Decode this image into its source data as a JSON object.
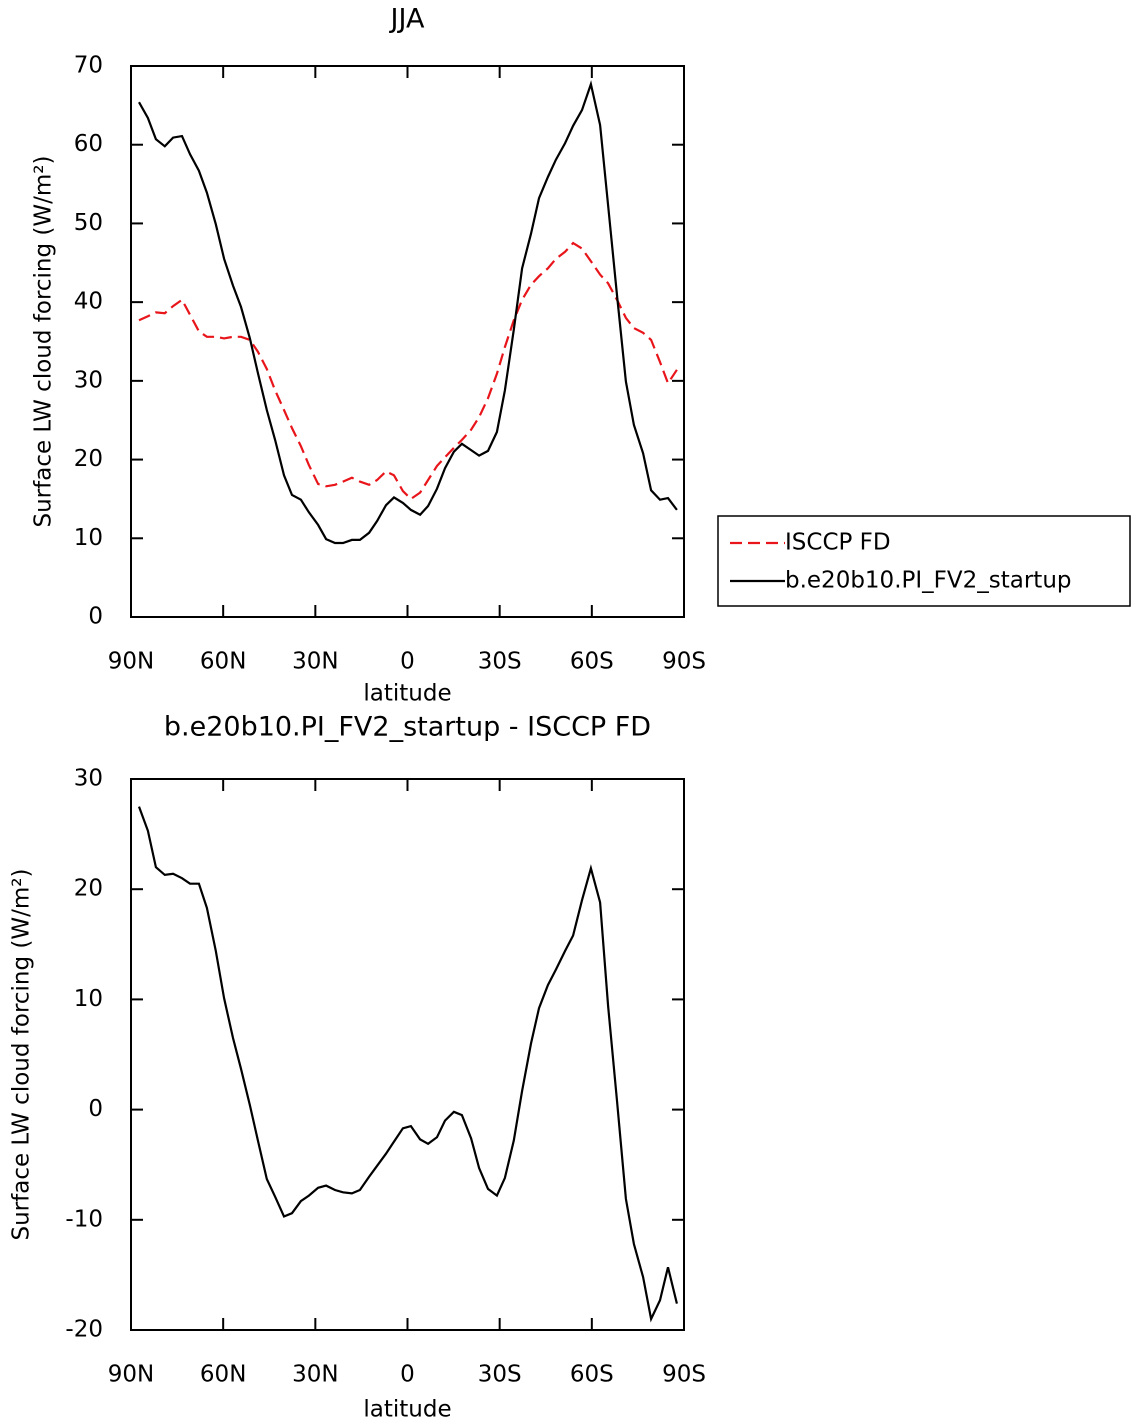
{
  "chart_data": [
    {
      "type": "line",
      "title": "JJA",
      "xlabel": "latitude",
      "ylabel": "Surface LW cloud forcing (W/m²)",
      "xlim": [
        90,
        -90
      ],
      "ylim": [
        0,
        70
      ],
      "xticks": [
        {
          "value": 90,
          "label": "90N"
        },
        {
          "value": 60,
          "label": "60N"
        },
        {
          "value": 30,
          "label": "30N"
        },
        0,
        {
          "value": -30,
          "label": "30S"
        },
        {
          "value": -60,
          "label": "60S"
        },
        {
          "value": -90,
          "label": "90S"
        }
      ],
      "yticks": [
        0,
        10,
        20,
        30,
        40,
        50,
        60,
        70
      ],
      "legend": "outside-right",
      "x": [
        87.4,
        84.5,
        81.9,
        79.0,
        76.3,
        73.4,
        70.8,
        67.9,
        65.3,
        62.4,
        59.7,
        56.8,
        54.2,
        51.3,
        48.7,
        45.8,
        43.1,
        40.2,
        37.6,
        34.7,
        32.1,
        29.1,
        26.5,
        23.6,
        21.0,
        18.1,
        15.5,
        12.5,
        9.9,
        7.0,
        4.4,
        1.5,
        -1.1,
        -4.1,
        -6.7,
        -9.6,
        -12.2,
        -15.1,
        -17.7,
        -20.7,
        -23.3,
        -26.2,
        -29.1,
        -31.7,
        -34.6,
        -37.3,
        -40.2,
        -42.8,
        -45.7,
        -48.3,
        -51.3,
        -53.9,
        -56.8,
        -59.7,
        -62.7,
        -65.3,
        -68.2,
        -71.1,
        -73.7,
        -76.7,
        -79.3,
        -82.2,
        -84.8,
        -87.7
      ],
      "series": [
        {
          "name": "ISCCP FD",
          "color": "#e8151b",
          "dash": true,
          "values": [
            37.7,
            38.2,
            38.7,
            38.6,
            39.5,
            40.3,
            38.4,
            36.3,
            35.6,
            35.6,
            35.4,
            35.6,
            35.6,
            35.2,
            33.7,
            31.5,
            28.8,
            26.3,
            24.0,
            21.7,
            19.3,
            16.9,
            16.6,
            16.8,
            17.2,
            17.7,
            17.2,
            16.8,
            17.4,
            18.5,
            18.0,
            16.0,
            15.0,
            15.8,
            17.4,
            19.2,
            20.3,
            21.5,
            22.5,
            23.8,
            25.4,
            27.8,
            30.9,
            34.3,
            37.7,
            40.3,
            42.2,
            43.3,
            44.3,
            45.5,
            46.4,
            47.5,
            46.8,
            45.2,
            43.5,
            42.4,
            40.3,
            38.0,
            36.7,
            36.1,
            35.2,
            32.4,
            29.7,
            31.4
          ]
        },
        {
          "name": "b.e20b10.PI_FV2_startup",
          "color": "#000000",
          "dash": false,
          "values": [
            65.4,
            63.4,
            60.7,
            59.8,
            60.9,
            61.1,
            58.8,
            56.7,
            53.9,
            49.9,
            45.5,
            42.1,
            39.4,
            35.4,
            31.0,
            26.3,
            22.5,
            18.0,
            15.5,
            14.9,
            13.3,
            11.7,
            9.9,
            9.4,
            9.4,
            9.8,
            9.8,
            10.7,
            12.2,
            14.2,
            15.2,
            14.5,
            13.6,
            13.0,
            14.1,
            16.3,
            18.9,
            21.0,
            22.0,
            21.2,
            20.5,
            21.1,
            23.5,
            28.8,
            36.5,
            44.3,
            48.7,
            53.2,
            55.9,
            58.1,
            60.2,
            62.4,
            64.4,
            67.7,
            62.5,
            52.3,
            40.9,
            29.9,
            24.4,
            20.8,
            16.1,
            14.9,
            15.1,
            13.6
          ]
        }
      ]
    },
    {
      "type": "line",
      "title": "b.e20b10.PI_FV2_startup - ISCCP FD",
      "xlabel": "latitude",
      "ylabel": "Surface LW cloud forcing (W/m²)",
      "xlim": [
        90,
        -90
      ],
      "ylim": [
        -20,
        30
      ],
      "xticks": [
        {
          "value": 90,
          "label": "90N"
        },
        {
          "value": 60,
          "label": "60N"
        },
        {
          "value": 30,
          "label": "30N"
        },
        0,
        {
          "value": -30,
          "label": "30S"
        },
        {
          "value": -60,
          "label": "60S"
        },
        {
          "value": -90,
          "label": "90S"
        }
      ],
      "yticks": [
        -20,
        -10,
        0,
        10,
        20,
        30
      ],
      "x": [
        87.4,
        84.5,
        81.9,
        79.0,
        76.3,
        73.4,
        70.8,
        67.9,
        65.3,
        62.4,
        59.7,
        56.8,
        54.2,
        51.3,
        48.7,
        45.8,
        43.1,
        40.2,
        37.6,
        34.7,
        32.1,
        29.1,
        26.5,
        23.6,
        21.0,
        18.1,
        15.5,
        12.5,
        9.9,
        7.0,
        4.4,
        1.5,
        -1.1,
        -4.1,
        -6.7,
        -9.6,
        -12.2,
        -15.1,
        -17.7,
        -20.7,
        -23.3,
        -26.2,
        -29.1,
        -31.7,
        -34.6,
        -37.3,
        -40.2,
        -42.8,
        -45.7,
        -48.3,
        -51.3,
        -53.9,
        -56.8,
        -59.7,
        -62.7,
        -65.3,
        -68.2,
        -71.1,
        -73.7,
        -76.7,
        -79.3,
        -82.2,
        -84.8,
        -87.7
      ],
      "series": [
        {
          "color": "#000000",
          "dash": false,
          "values": [
            27.5,
            25.3,
            22.0,
            21.3,
            21.4,
            21.0,
            20.5,
            20.5,
            18.3,
            14.4,
            10.1,
            6.5,
            3.7,
            0.4,
            -2.8,
            -6.3,
            -7.9,
            -9.7,
            -9.4,
            -8.3,
            -7.8,
            -7.1,
            -6.9,
            -7.3,
            -7.5,
            -7.6,
            -7.3,
            -6.1,
            -5.1,
            -4.0,
            -2.9,
            -1.7,
            -1.5,
            -2.7,
            -3.1,
            -2.5,
            -1.0,
            -0.2,
            -0.5,
            -2.6,
            -5.3,
            -7.2,
            -7.8,
            -6.2,
            -2.8,
            1.7,
            6.0,
            9.2,
            11.3,
            12.7,
            14.4,
            15.8,
            19.0,
            21.9,
            18.8,
            9.4,
            0.8,
            -8.1,
            -12.2,
            -15.2,
            -19.0,
            -17.3,
            -14.3,
            -17.6
          ]
        }
      ]
    }
  ]
}
